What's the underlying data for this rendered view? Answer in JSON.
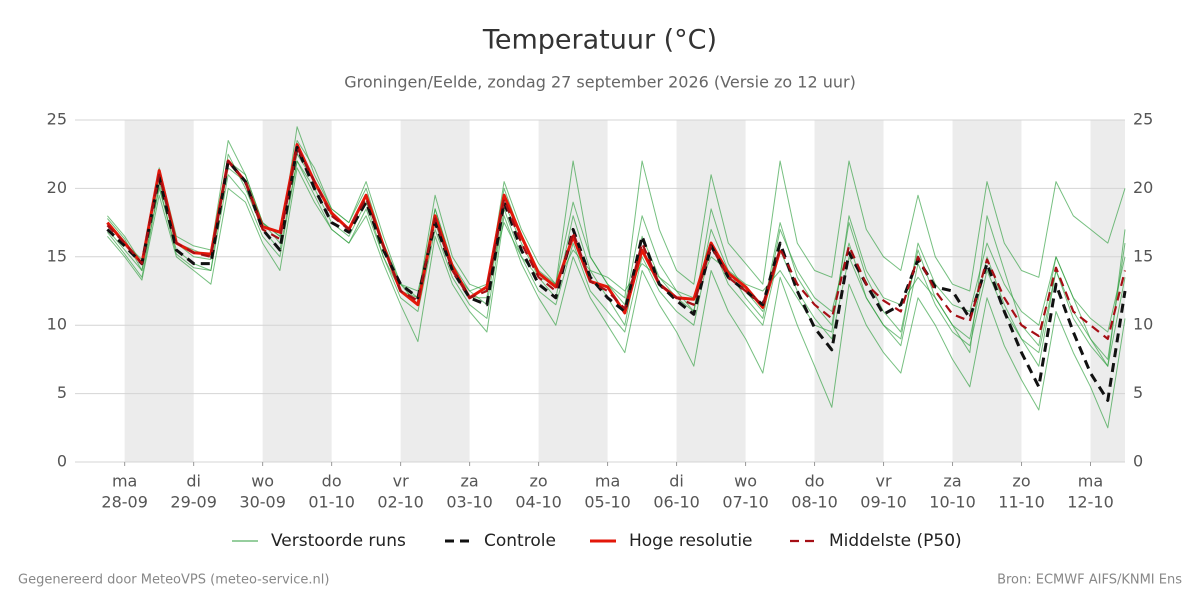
{
  "chart_data": {
    "type": "line",
    "title": "Temperatuur (°C)",
    "subtitle": "Groningen/Eelde, zondag 27 september 2026 (Versie zo 12 uur)",
    "footer_left": "Gegenereerd door MeteoVPS (meteo-service.nl)",
    "footer_right": "Bron: ECMWF AIFS/KNMI Ens",
    "x": [
      -0.25,
      0,
      0.25,
      0.5,
      0.75,
      1,
      1.25,
      1.5,
      1.75,
      2,
      2.25,
      2.5,
      2.75,
      3,
      3.25,
      3.5,
      3.75,
      4,
      4.25,
      4.5,
      4.75,
      5,
      5.25,
      5.5,
      5.75,
      6,
      6.25,
      6.5,
      6.75,
      7,
      7.25,
      7.5,
      7.75,
      8,
      8.25,
      8.5,
      8.75,
      9,
      9.25,
      9.5,
      9.75,
      10,
      10.25,
      10.5,
      10.75,
      11,
      11.25,
      11.5,
      11.75,
      12,
      12.25,
      12.5,
      12.75,
      13,
      13.25,
      13.5,
      13.75,
      14,
      14.25,
      14.5
    ],
    "xlim": [
      -0.72,
      14.5
    ],
    "xticks": [
      {
        "value": 0,
        "label": "28-09",
        "day": "ma"
      },
      {
        "value": 1,
        "label": "29-09",
        "day": "di"
      },
      {
        "value": 2,
        "label": "30-09",
        "day": "wo"
      },
      {
        "value": 3,
        "label": "01-10",
        "day": "do"
      },
      {
        "value": 4,
        "label": "02-10",
        "day": "vr"
      },
      {
        "value": 5,
        "label": "03-10",
        "day": "za"
      },
      {
        "value": 6,
        "label": "04-10",
        "day": "zo"
      },
      {
        "value": 7,
        "label": "05-10",
        "day": "ma"
      },
      {
        "value": 8,
        "label": "06-10",
        "day": "di"
      },
      {
        "value": 9,
        "label": "07-10",
        "day": "wo"
      },
      {
        "value": 10,
        "label": "08-10",
        "day": "do"
      },
      {
        "value": 11,
        "label": "09-10",
        "day": "vr"
      },
      {
        "value": 12,
        "label": "10-10",
        "day": "za"
      },
      {
        "value": 13,
        "label": "11-10",
        "day": "zo"
      },
      {
        "value": 14,
        "label": "12-10",
        "day": "ma"
      }
    ],
    "ylim": [
      0,
      25
    ],
    "yticks": [
      0,
      5,
      10,
      15,
      20,
      25
    ],
    "y2lim": [
      0,
      25
    ],
    "y2ticks": [
      0,
      5,
      10,
      15,
      20,
      25
    ],
    "grid": true,
    "series": [
      {
        "name": "Verstoorde runs",
        "color": "#2e9e3e",
        "runs": [
          [
            17.8,
            16.3,
            14,
            21.5,
            16.5,
            15.8,
            15.5,
            23.5,
            21,
            17.5,
            16,
            24.5,
            21,
            18.5,
            17.5,
            20.5,
            16.5,
            13,
            12,
            19.5,
            15,
            13,
            12.5,
            20.5,
            17,
            14.5,
            13,
            22,
            15,
            13,
            12,
            22,
            17,
            14,
            13,
            21,
            16,
            14.5,
            13,
            22,
            16,
            14,
            13.5,
            22,
            17,
            15,
            14,
            19.5,
            15,
            13,
            12.5,
            20.5,
            16,
            14,
            13.5,
            20.5,
            18,
            17,
            16,
            20
          ],
          [
            16.5,
            15,
            13.3,
            19.5,
            15,
            14,
            13,
            20,
            19,
            16,
            14,
            21.5,
            19,
            17,
            16,
            18,
            14.5,
            11.5,
            8.8,
            16.5,
            13,
            11,
            9.5,
            18,
            14.5,
            12,
            10,
            15,
            12,
            10,
            8,
            14,
            11.5,
            9.5,
            7,
            14,
            11,
            9,
            6.5,
            13.5,
            10,
            7,
            4,
            13,
            10,
            8,
            6.5,
            12,
            10,
            7.5,
            5.5,
            12,
            8.5,
            6,
            3.8,
            11,
            8,
            5.5,
            2.5,
            10.5
          ],
          [
            17,
            15.5,
            14,
            20,
            15.5,
            14.5,
            14,
            22.5,
            20,
            17,
            15.5,
            22,
            20,
            17.5,
            16.5,
            19,
            15,
            12.5,
            12,
            18.5,
            14.5,
            12.5,
            11.5,
            19,
            16,
            13.5,
            12,
            18,
            14,
            12,
            10,
            16.5,
            13.5,
            12,
            11,
            17,
            14,
            12,
            10.5,
            17,
            14,
            12,
            11,
            16,
            12,
            10,
            9,
            16,
            13,
            11.5,
            11,
            16,
            13,
            11,
            10,
            15,
            12,
            10.5,
            9.5,
            15
          ],
          [
            17.5,
            16,
            14.8,
            20.5,
            16,
            15,
            14.8,
            21.5,
            20.5,
            17.5,
            16.5,
            22.5,
            20.5,
            18,
            17,
            19.5,
            15.5,
            13,
            12.5,
            17.5,
            14,
            12.5,
            13,
            17.5,
            15,
            13.5,
            13,
            15.5,
            14,
            13.5,
            12.5,
            14.5,
            13.5,
            12.5,
            12,
            15,
            14,
            13,
            12.5,
            14,
            12,
            10,
            9.5,
            18,
            14,
            12,
            11.5,
            13.5,
            12,
            10,
            8,
            18,
            14,
            10,
            8.5,
            15,
            12,
            9,
            7,
            17
          ],
          [
            18,
            16.5,
            14.5,
            21,
            16,
            15.5,
            15,
            22,
            21,
            17.5,
            16.5,
            23.5,
            21.5,
            18.5,
            17.5,
            20,
            16,
            13,
            11.5,
            18.5,
            14.5,
            12,
            12,
            20,
            16.5,
            14,
            13,
            19,
            15,
            13,
            11.5,
            18,
            14.5,
            12.5,
            11,
            18.5,
            14.5,
            12.5,
            11,
            17.5,
            13.5,
            11.5,
            10,
            17.5,
            13.5,
            11,
            9.5,
            15.5,
            12,
            10,
            9,
            15,
            11.5,
            9,
            7,
            14,
            11,
            9,
            7.5,
            16
          ],
          [
            16.8,
            15.2,
            13.5,
            20.2,
            15.2,
            14.2,
            14,
            21,
            19.5,
            16.5,
            15,
            22,
            19.5,
            17,
            16,
            18.5,
            15,
            12,
            11,
            17,
            13.5,
            11.5,
            10.5,
            18.5,
            15,
            12.5,
            11.5,
            16,
            12.5,
            11,
            9.5,
            15,
            12.5,
            11,
            10,
            16,
            13,
            11.5,
            10,
            15.5,
            12.5,
            10.5,
            9,
            15,
            12,
            10,
            8.5,
            14.5,
            11.5,
            9.5,
            8.5,
            14,
            11,
            9,
            8,
            14,
            10.5,
            8.5,
            7,
            13.5
          ]
        ]
      },
      {
        "name": "Controle",
        "color": "#111111",
        "dashed": true,
        "values": [
          17,
          15.8,
          14.5,
          20.8,
          15.5,
          14.5,
          14.5,
          22,
          20.5,
          17,
          15.5,
          23,
          20,
          17.5,
          16.8,
          19,
          15.5,
          13,
          12,
          17.5,
          14,
          12,
          11.5,
          19,
          15.5,
          13,
          12,
          17,
          13.5,
          12,
          11,
          16.5,
          13,
          11.8,
          10.8,
          15.8,
          13.5,
          12.5,
          11.5,
          16,
          12.5,
          9.8,
          8.2,
          15.3,
          13,
          10.8,
          11.5,
          14.8,
          12.8,
          12.5,
          10.5,
          14.5,
          11,
          8,
          5.5,
          13,
          9.5,
          6.5,
          4.5,
          12.5
        ]
      },
      {
        "name": "Hoge resolutie",
        "color": "#e3170a",
        "values": [
          17.5,
          16,
          14.5,
          21.3,
          16,
          15.3,
          15.2,
          22,
          20.5,
          17.2,
          16.8,
          23.2,
          20.5,
          18.2,
          17,
          19.5,
          15.8,
          12.5,
          11.5,
          18,
          14.3,
          12,
          12.8,
          19.5,
          16.5,
          13.8,
          12.8,
          16.5,
          13.2,
          12.8,
          10.9,
          15.5,
          13,
          12,
          11.9,
          16,
          13.8,
          12.8,
          11.3,
          15.5,
          null,
          null,
          null,
          null,
          null,
          null,
          null,
          null,
          null,
          null,
          null,
          null,
          null,
          null,
          null,
          null,
          null,
          null,
          null,
          null
        ]
      },
      {
        "name": "Middelste (P50)",
        "color": "#a50f15",
        "dashed": true,
        "values": [
          17.3,
          16,
          14.5,
          21,
          16,
          15.3,
          15,
          22,
          20.5,
          17,
          16.3,
          23,
          20.5,
          18,
          17,
          19.3,
          15.8,
          12.5,
          11.8,
          17.8,
          14,
          12,
          12.5,
          19.2,
          16,
          13.5,
          12.5,
          16.8,
          13.2,
          12.5,
          11.2,
          16,
          13,
          12,
          11.5,
          15.8,
          13.5,
          12.5,
          11.5,
          15.6,
          13,
          11.5,
          10.5,
          15.8,
          13,
          11.8,
          11,
          15,
          12.5,
          10.8,
          10.3,
          14.8,
          12,
          10,
          9.2,
          14.2,
          11,
          10,
          9,
          14
        ]
      }
    ]
  }
}
